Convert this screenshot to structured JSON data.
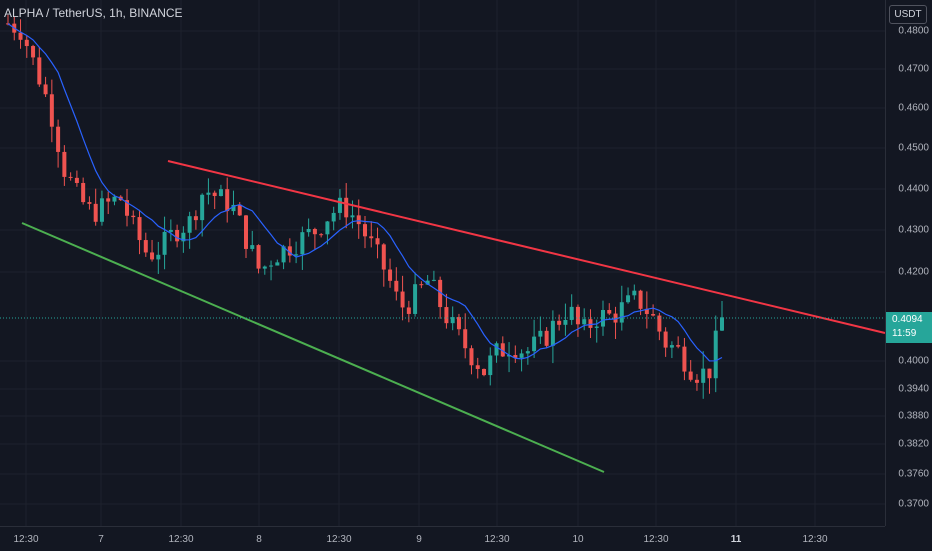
{
  "header": {
    "symbol": "ALPHA / TetherUS",
    "interval": "1h",
    "exchange": "BINANCE",
    "separator": ", "
  },
  "price_scale": {
    "currency": "USDT",
    "labels": [
      "0.4800",
      "0.4700",
      "0.4600",
      "0.4500",
      "0.4400",
      "0.4300",
      "0.4200",
      "0.4000",
      "0.3940",
      "0.3880",
      "0.3820",
      "0.3760",
      "0.3700"
    ],
    "current_price": "0.4094",
    "countdown": "11:59"
  },
  "time_scale": {
    "labels": [
      "12:30",
      "7",
      "12:30",
      "8",
      "12:30",
      "9",
      "12:30",
      "10",
      "12:30",
      "11",
      "12:30"
    ],
    "bold": "11"
  },
  "colors": {
    "background": "#131722",
    "up": "#26a69a",
    "down": "#ef5350",
    "ma": "#2962ff",
    "resistance": "#f23645",
    "support": "#4caf50",
    "current_price_bg": "#26a69a"
  },
  "chart_data": {
    "type": "candlestick",
    "series": [
      {
        "name": "ALPHA / TetherUS",
        "type": "candlestick"
      },
      {
        "type": "line",
        "role": "moving-average"
      }
    ],
    "approx_close_path": [
      0.482,
      0.48,
      0.47,
      0.46,
      0.445,
      0.438,
      0.434,
      0.436,
      0.438,
      0.43,
      0.424,
      0.426,
      0.43,
      0.432,
      0.44,
      0.438,
      0.436,
      0.428,
      0.42,
      0.424,
      0.426,
      0.428,
      0.43,
      0.434,
      0.436,
      0.432,
      0.426,
      0.42,
      0.412,
      0.414,
      0.418,
      0.412,
      0.406,
      0.402,
      0.398,
      0.402,
      0.404,
      0.402,
      0.404,
      0.408,
      0.412,
      0.406,
      0.41,
      0.41,
      0.412,
      0.414,
      0.41,
      0.404,
      0.402,
      0.398,
      0.397,
      0.4094
    ],
    "trendlines": [
      {
        "role": "resistance",
        "color": "#f23645"
      },
      {
        "role": "support",
        "color": "#4caf50"
      }
    ],
    "current_price": 0.4094
  }
}
